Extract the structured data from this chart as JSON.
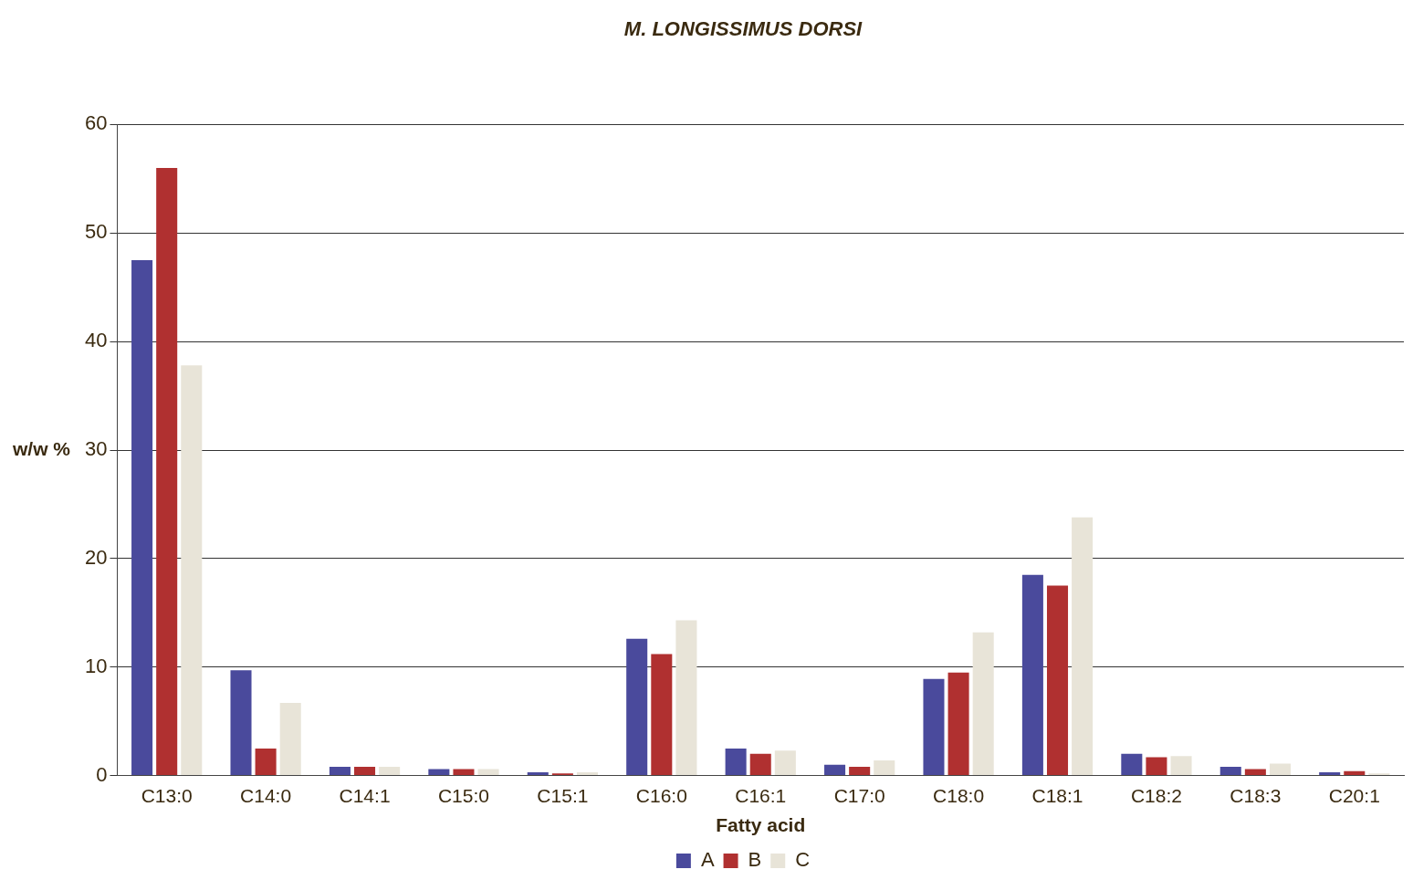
{
  "chart_data": {
    "type": "bar",
    "title": "M. LONGISSIMUS DORSI",
    "xlabel": "Fatty acid",
    "ylabel": "w/w %",
    "categories": [
      "C13:0",
      "C14:0",
      "C14:1",
      "C15:0",
      "C15:1",
      "C16:0",
      "C16:1",
      "C17:0",
      "C18:0",
      "C18:1",
      "C18:2",
      "C18:3",
      "C20:1"
    ],
    "series": [
      {
        "name": "A",
        "color": "#4a4a9c",
        "values": [
          47.5,
          9.7,
          0.8,
          0.6,
          0.3,
          12.6,
          2.5,
          1.0,
          8.9,
          18.5,
          2.0,
          0.8,
          0.3
        ]
      },
      {
        "name": "B",
        "color": "#b03030",
        "values": [
          56,
          2.5,
          0.8,
          0.6,
          0.2,
          11.2,
          2.0,
          0.8,
          9.5,
          17.5,
          1.7,
          0.6,
          0.4
        ]
      },
      {
        "name": "C",
        "color": "#e8e4d8",
        "values": [
          37.8,
          6.7,
          0.8,
          0.6,
          0.3,
          14.3,
          2.3,
          1.4,
          13.2,
          23.8,
          1.8,
          1.1,
          0.2
        ]
      }
    ],
    "ylim": [
      0,
      60
    ],
    "yticks": [
      0,
      10,
      20,
      30,
      40,
      50,
      60
    ],
    "grid": "y",
    "legend": "bottom"
  }
}
